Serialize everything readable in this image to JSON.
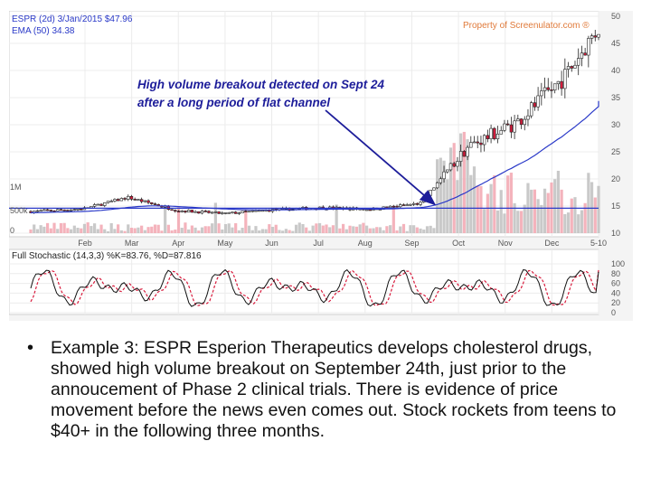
{
  "chart_data": {
    "type": "candlestick",
    "price_panel": {
      "header_line1": "ESPR (2d) 3/Jan/2015 $47.96",
      "header_line2": "EMA (50) 34.38",
      "watermark": "Property of Screenulator.com ®",
      "annotation": {
        "line1": "High volume breakout detected on Sept 24",
        "line2": "after a long period of flat channel",
        "arrow_target_date": "2014-09-24",
        "arrow_target_price": 15.3
      },
      "ylim": [
        10,
        50
      ],
      "right_ticks": [
        "50",
        "45",
        "40",
        "35",
        "30",
        "25",
        "20",
        "15",
        "10"
      ],
      "volume_ticks": [
        "1M",
        "500k",
        "0"
      ],
      "x_ticks": [
        "Feb",
        "Mar",
        "Apr",
        "May",
        "Jun",
        "Jul",
        "Aug",
        "Sep",
        "Oct",
        "Nov",
        "Dec",
        "5-10"
      ],
      "reference_line_price": 14.6,
      "close_by_month": [
        {
          "date": "2014-01",
          "price": 14.0
        },
        {
          "date": "2014-02",
          "price": 14.5
        },
        {
          "date": "2014-03",
          "price": 16.6
        },
        {
          "date": "2014-04",
          "price": 14.2
        },
        {
          "date": "2014-05",
          "price": 13.6
        },
        {
          "date": "2014-06",
          "price": 14.3
        },
        {
          "date": "2014-07",
          "price": 14.7
        },
        {
          "date": "2014-08",
          "price": 14.4
        },
        {
          "date": "2014-09",
          "price": 15.5
        },
        {
          "date": "2014-10",
          "price": 26.0
        },
        {
          "date": "2014-11",
          "price": 30.5
        },
        {
          "date": "2014-12",
          "price": 39.0
        },
        {
          "date": "2015-01",
          "price": 47.96
        }
      ],
      "ema50_end": 34.38
    },
    "stochastic_panel": {
      "header": "Full Stochastic (14,3,3) %K=83.76, %D=87.816",
      "ylim": [
        0,
        100
      ],
      "right_ticks": [
        "100",
        "80",
        "60",
        "40",
        "20",
        "0"
      ],
      "k_end": 83.76,
      "d_end": 87.816
    },
    "colors": {
      "up_candle": "#ffffff",
      "down_candle": "#d81b3c",
      "ema_line": "#2a39c8",
      "volume_bar": "#c0c0c0",
      "volume_bar_down": "#f2a6b0",
      "annotation_text": "#1d1d9a",
      "watermark": "#e07a3a",
      "stoch_k": "#111111",
      "stoch_d": "#d81b3c"
    }
  },
  "caption": {
    "bullet": "•",
    "text": "Example 3: ESPR Esperion Therapeutics develops cholesterol drugs, showed high volume breakout on September 24th, just prior to the annoucement of Phase 2 clinical trials. There is evidence of price movement before the news even comes out. Stock rockets from teens to $40+ in the following three months."
  }
}
